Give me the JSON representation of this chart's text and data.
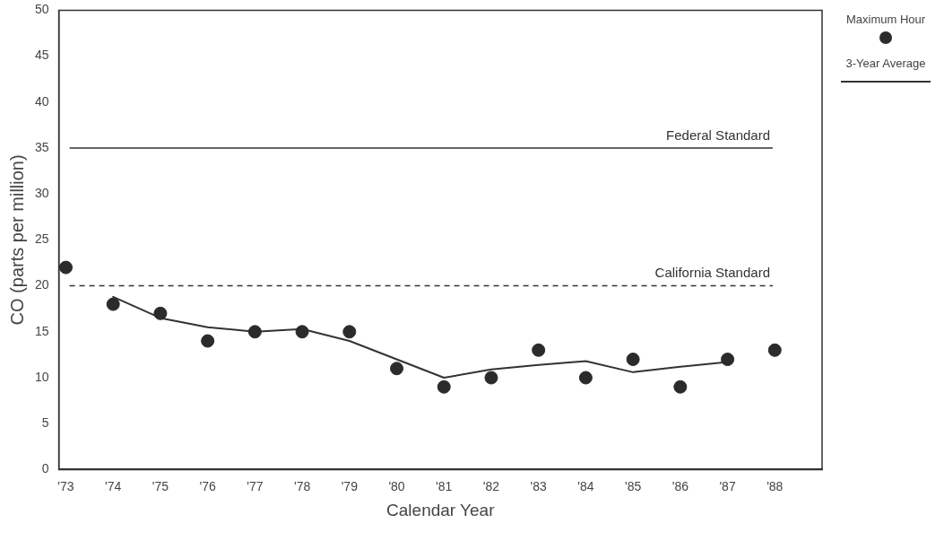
{
  "chart_data": {
    "type": "scatter",
    "xlabel": "Calendar Year",
    "ylabel": "CO (parts per million)",
    "x": [
      1973,
      1974,
      1975,
      1976,
      1977,
      1978,
      1979,
      1980,
      1981,
      1982,
      1983,
      1984,
      1985,
      1986,
      1987,
      1988
    ],
    "series": [
      {
        "name": "Maximum Hour",
        "color": "#2b2b2b",
        "marker": "circle",
        "values": [
          22,
          18,
          17,
          14,
          15,
          15,
          15,
          11,
          9,
          10,
          13,
          10,
          12,
          9,
          12,
          13
        ]
      },
      {
        "name": "3-Year Average",
        "type": "line",
        "color": "#333333",
        "marker": "none",
        "line_style": "solid",
        "x": [
          1974,
          1975,
          1976,
          1977,
          1978,
          1979,
          1980,
          1981,
          1982,
          1983,
          1984,
          1985,
          1986,
          1987
        ],
        "values": [
          18.8,
          16.5,
          15.5,
          15,
          15.3,
          14,
          12,
          10,
          10.9,
          11.4,
          11.8,
          10.6,
          11.2,
          11.7
        ]
      }
    ],
    "xlim": [
      1972.85,
      1989
    ],
    "xticks": [
      {
        "value": 1973,
        "label": "'73"
      },
      {
        "value": 1974,
        "label": "'74"
      },
      {
        "value": 1975,
        "label": "'75"
      },
      {
        "value": 1976,
        "label": "'76"
      },
      {
        "value": 1977,
        "label": "'77"
      },
      {
        "value": 1978,
        "label": "'78"
      },
      {
        "value": 1979,
        "label": "'79"
      },
      {
        "value": 1980,
        "label": "'80"
      },
      {
        "value": 1981,
        "label": "'81"
      },
      {
        "value": 1982,
        "label": "'82"
      },
      {
        "value": 1983,
        "label": "'83"
      },
      {
        "value": 1984,
        "label": "'84"
      },
      {
        "value": 1985,
        "label": "'85"
      },
      {
        "value": 1986,
        "label": "'86"
      },
      {
        "value": 1987,
        "label": "'87"
      },
      {
        "value": 1988,
        "label": "'88"
      }
    ],
    "ylim": [
      0,
      50
    ],
    "yticks": [
      0,
      5,
      10,
      15,
      20,
      25,
      30,
      35,
      40,
      45,
      50
    ],
    "ref_lines": [
      {
        "axis": "y",
        "value": 35,
        "label": "Federal Standard",
        "color": "#333333",
        "line_style": "solid"
      },
      {
        "axis": "y",
        "value": 20,
        "label": "California Standard",
        "color": "#333333",
        "line_style": "dashed"
      }
    ],
    "grid": false,
    "legend": "top right"
  }
}
